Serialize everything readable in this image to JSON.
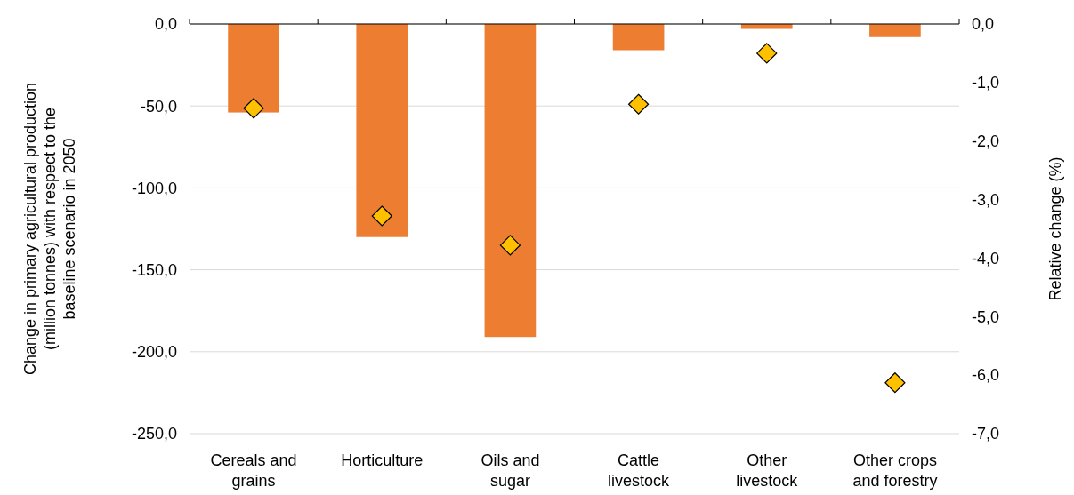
{
  "chart_data": {
    "type": "bar",
    "ylabel": "Change in primary agricultural production (million tonnes) with respect to the baseline scenario in 2050",
    "y2label": "Relative change (%)",
    "categories": [
      "Cereals and grains",
      "Horticulture",
      "Oils and sugar",
      "Cattle livestock",
      "Other livestock",
      "Other crops and forestry"
    ],
    "series": [
      {
        "color": "#ed7d31",
        "values": [
          -54,
          -130,
          -191,
          -16,
          -3,
          -8
        ]
      },
      {
        "type": "scatter",
        "axis": "y2",
        "color": "#ffc000",
        "marker": "diamond",
        "values": [
          -1.44,
          -3.28,
          -3.78,
          -1.37,
          -0.5,
          -6.13
        ]
      }
    ],
    "ylim": [
      -250,
      0
    ],
    "yticks": [
      {
        "value": -250,
        "label": "-250,0"
      },
      {
        "value": -200,
        "label": "-200,0"
      },
      {
        "value": -150,
        "label": "-150,0"
      },
      {
        "value": -100,
        "label": "-100,0"
      },
      {
        "value": -50,
        "label": "-50,0"
      },
      {
        "value": 0,
        "label": "0,0"
      }
    ],
    "y2lim": [
      -7,
      0
    ],
    "y2ticks": [
      {
        "value": -7,
        "label": "-7,0"
      },
      {
        "value": -6,
        "label": "-6,0"
      },
      {
        "value": -5,
        "label": "-5,0"
      },
      {
        "value": -4,
        "label": "-4,0"
      },
      {
        "value": -3,
        "label": "-3,0"
      },
      {
        "value": -2,
        "label": "-2,0"
      },
      {
        "value": -1,
        "label": "-1,0"
      },
      {
        "value": 0,
        "label": "0,0"
      }
    ],
    "grid": "y"
  }
}
